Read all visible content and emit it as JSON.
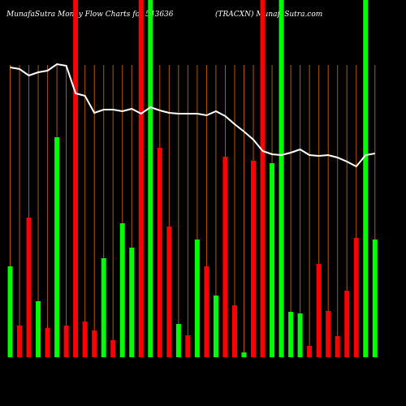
{
  "chart_data": {
    "type": "bar",
    "title": "MunafaSutra  Money Flow  Charts for 543636",
    "subtitle": "(TRACXN) MunafaSutra.com",
    "ylim": [
      0,
      440
    ],
    "values": [
      112,
      39,
      172,
      69,
      36,
      271,
      39,
      440,
      44,
      33,
      122,
      21,
      165,
      135,
      440,
      440,
      258,
      161,
      41,
      27,
      145,
      112,
      76,
      247,
      64,
      6,
      242,
      440,
      239,
      440,
      56,
      54,
      14,
      115,
      57,
      26,
      82,
      147,
      440,
      145
    ],
    "colors": [
      "#00ff00",
      "#ff0000",
      "#ff0000",
      "#00ff00",
      "#ff0000",
      "#00ff00",
      "#ff0000",
      "#ff0000",
      "#ff0000",
      "#ff0000",
      "#00ff00",
      "#ff0000",
      "#00ff00",
      "#00ff00",
      "#ff0000",
      "#00ff00",
      "#ff0000",
      "#ff0000",
      "#00ff00",
      "#ff0000",
      "#00ff00",
      "#ff0000",
      "#00ff00",
      "#ff0000",
      "#ff0000",
      "#00ff00",
      "#ff0000",
      "#ff0000",
      "#00ff00",
      "#00ff00",
      "#00ff00",
      "#00ff00",
      "#ff0000",
      "#ff0000",
      "#ff0000",
      "#ff0000",
      "#ff0000",
      "#ff0000",
      "#00ff00",
      "#00ff00"
    ],
    "line": {
      "color": "#ffffff",
      "values": [
        357,
        355,
        347,
        351,
        353,
        361,
        359,
        325,
        322,
        301,
        305,
        305,
        303,
        306,
        300,
        308,
        304,
        301,
        300,
        300,
        300,
        298,
        303,
        297,
        287,
        278,
        268,
        254,
        250,
        249,
        252,
        256,
        249,
        248,
        249,
        246,
        241,
        235,
        249,
        251
      ]
    },
    "gridline_color": "#b35900"
  }
}
